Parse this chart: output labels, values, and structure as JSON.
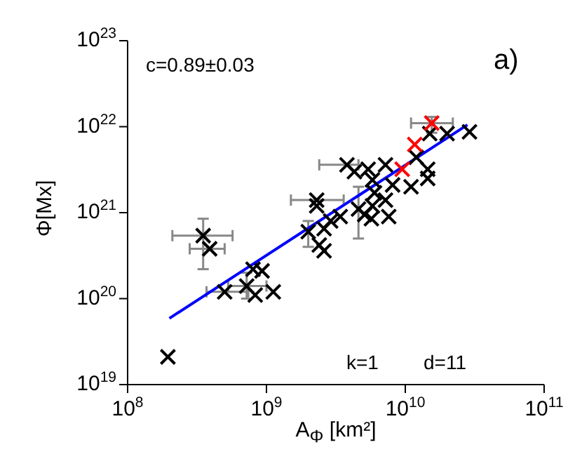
{
  "chart_data": {
    "type": "scatter",
    "xlabel": "A$_{Φ}$ [km²]",
    "ylabel": "Φ[Mx]",
    "log": "xy",
    "xlim": [
      100000000.0,
      100000000000.0
    ],
    "ylim": [
      1e+19,
      1e+23
    ],
    "xticks": [
      {
        "value": 100000000.0,
        "label": "10$^{8}$"
      },
      {
        "value": 1000000000.0,
        "label": "10$^{9}$"
      },
      {
        "value": 10000000000.0,
        "label": "10$^{10}$"
      },
      {
        "value": 100000000000.0,
        "label": "10$^{11}$"
      }
    ],
    "yticks": [
      {
        "value": 1e+19,
        "label": "10$^{19}$"
      },
      {
        "value": 1e+20,
        "label": "10$^{20}$"
      },
      {
        "value": 1e+21,
        "label": "10$^{21}$"
      },
      {
        "value": 1e+22,
        "label": "10$^{22}$"
      },
      {
        "value": 1e+23,
        "label": "10$^{23}$"
      }
    ],
    "annotations": [
      "c=0.89±0.03",
      "a)",
      "k=1",
      "d=11"
    ],
    "series": [
      {
        "color": "#000000",
        "marker": "cross",
        "x": [
          195000000.0,
          350000000.0,
          390000000.0,
          500000000.0,
          720000000.0,
          830000000.0,
          1120000000.0,
          800000000.0,
          930000000.0,
          2000000000.0,
          2600000000.0,
          2400000000.0,
          2600000000.0,
          3400000000.0,
          4600000000.0,
          5100000000.0,
          5700000000.0,
          7600000000.0,
          2300000000.0,
          2300000000.0,
          3800000000.0,
          4300000000.0,
          5400000000.0,
          5800000000.0,
          6000000000.0,
          5800000000.0,
          7200000000.0,
          8100000000.0,
          7200000000.0,
          11000000000.0,
          12000000000.0,
          14500000000.0,
          14500000000.0,
          15000000000.0,
          20000000000.0,
          29000000000.0,
          2900000000.0
        ],
        "values": [
          2.1e+19,
          5.4e+20,
          3.8e+20,
          1.2e+20,
          1.4e+20,
          1.1e+20,
          1.2e+20,
          2.2e+20,
          2.1e+20,
          6e+20,
          6.5e+20,
          4.2e+20,
          3.6e+20,
          9e+20,
          1.1e+21,
          9.5e+20,
          8.5e+20,
          9e+20,
          1.4e+21,
          1.2e+21,
          3.6e+21,
          3e+21,
          3.2e+21,
          2.4e+21,
          1.7e+21,
          1.2e+21,
          3.6e+21,
          2.1e+21,
          1.4e+21,
          2e+21,
          4.4e+21,
          3.2e+21,
          2.5e+21,
          8.3e+21,
          8.3e+21,
          8.7e+21,
          8e+20
        ],
        "errors": [
          null,
          [
            2.2e+20,
            8.5e+20
          ],
          null,
          null,
          [
            1e+20,
            2e+20
          ],
          null,
          null,
          null,
          null,
          [
            4e+20,
            8e+20
          ],
          null,
          null,
          null,
          null,
          [
            5e+20,
            2e+21
          ],
          null,
          null,
          null,
          null,
          null,
          null,
          null,
          null,
          null,
          null,
          null,
          null,
          null,
          null,
          null,
          null,
          null,
          null,
          null,
          null,
          null,
          null
        ],
        "xerrors": [
          null,
          [
            210000000.0,
            570000000.0
          ],
          [
            280000000.0,
            500000000.0
          ],
          [
            370000000.0,
            740000000.0
          ],
          [
            530000000.0,
            1000000000.0
          ],
          null,
          null,
          null,
          null,
          null,
          null,
          null,
          null,
          null,
          null,
          null,
          null,
          null,
          [
            1500000000.0,
            3600000000.0
          ],
          null,
          [
            2400000000.0,
            4600000000.0
          ],
          null,
          null,
          null,
          null,
          null,
          null,
          null,
          null,
          null,
          null,
          null,
          null,
          null,
          null,
          null,
          null
        ]
      },
      {
        "color": "#ff0000",
        "marker": "cross",
        "x": [
          9500000000.0,
          11700000000.0,
          15500000000.0
        ],
        "values": [
          3.2e+21,
          6.2e+21,
          1.1e+22
        ],
        "errors": [
          null,
          null,
          [
            8.5e+21,
            1.3e+22
          ]
        ],
        "xerrors": [
          null,
          null,
          [
            11000000000.0,
            22000000000.0
          ]
        ]
      },
      {
        "type": "line",
        "color": "#0000ff",
        "line_style": "solid",
        "marker": "none",
        "x": [
          200000000.0,
          28000000000.0
        ],
        "values": [
          5.9e+19,
          1.05e+22
        ]
      }
    ]
  }
}
